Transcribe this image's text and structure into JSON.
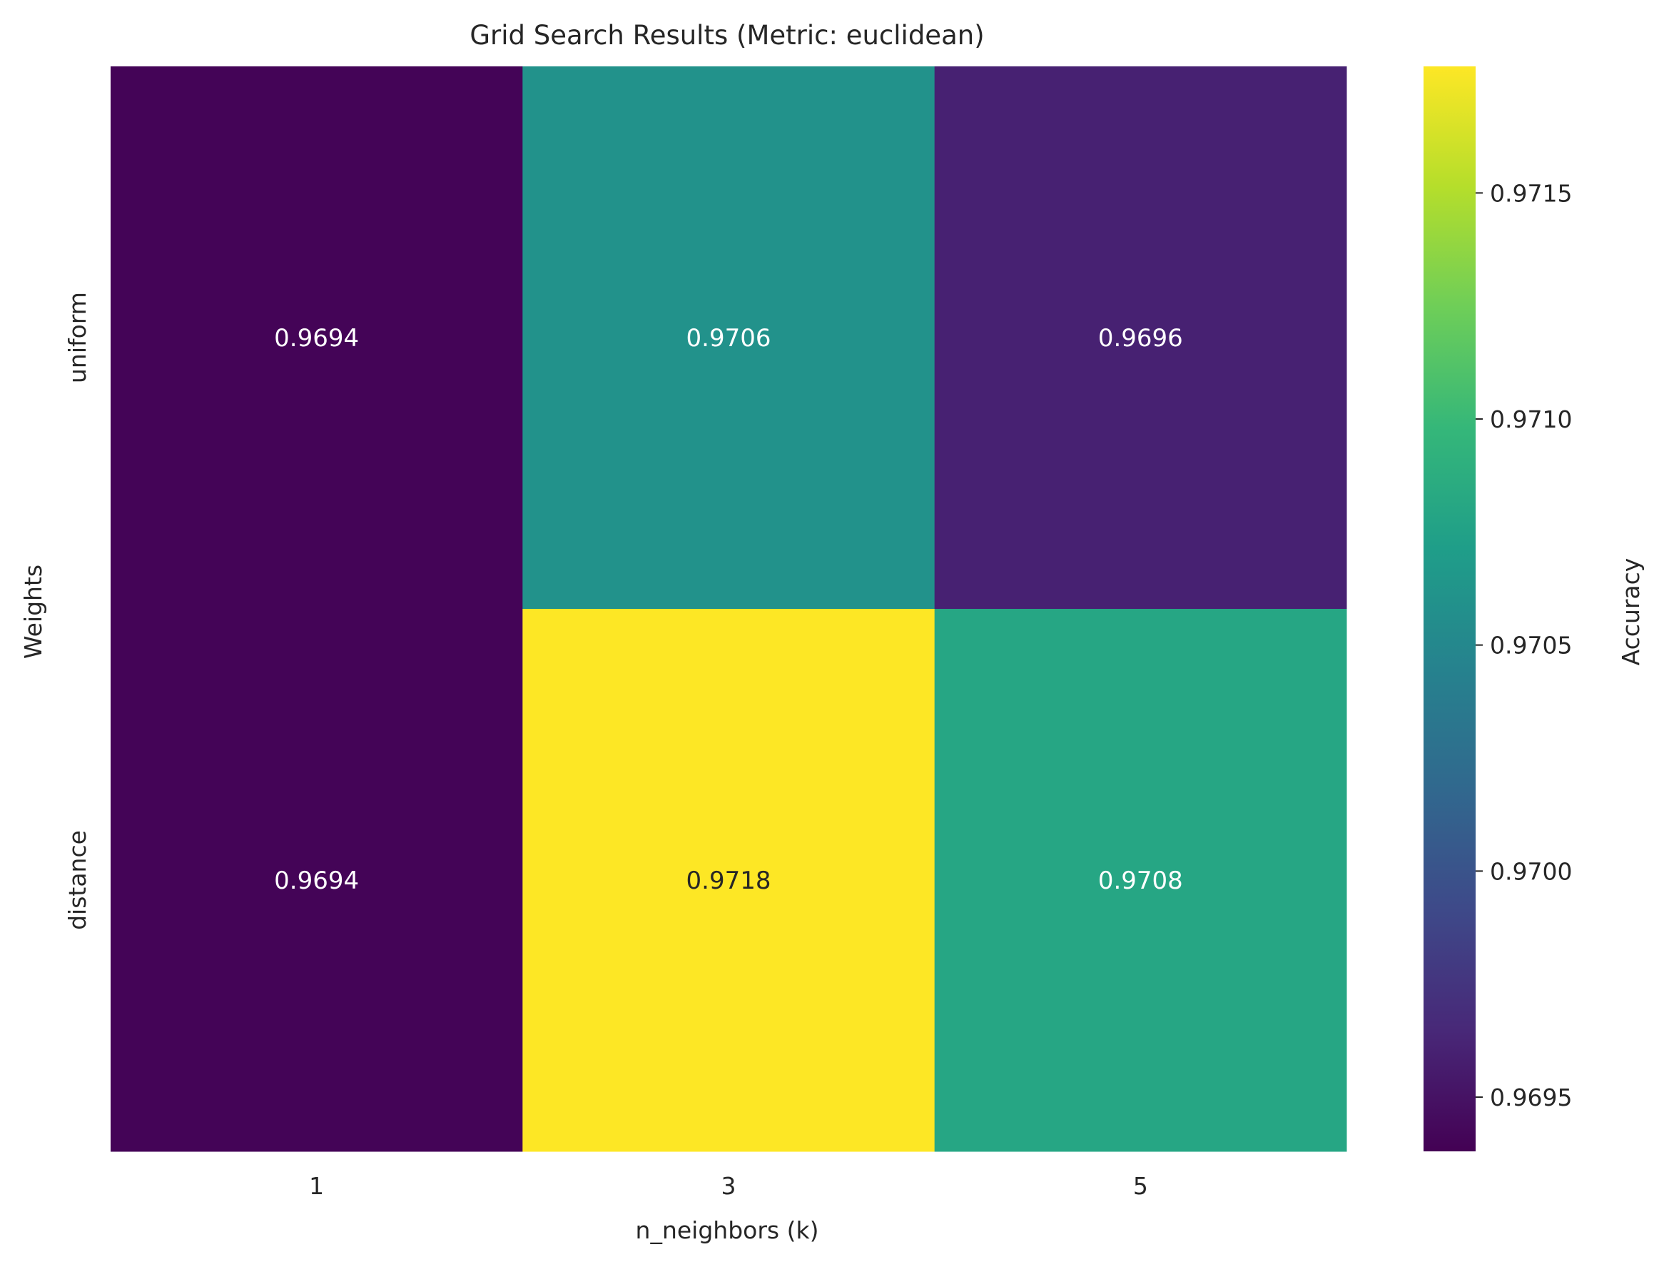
{
  "chart_data": {
    "type": "heatmap",
    "title": "Grid Search Results (Metric: euclidean)",
    "xlabel": "n_neighbors (k)",
    "ylabel": "Weights",
    "x_categories": [
      "1",
      "3",
      "5"
    ],
    "y_categories": [
      "uniform",
      "distance"
    ],
    "values": [
      [
        0.9694,
        0.9706,
        0.9696
      ],
      [
        0.9694,
        0.9718,
        0.9708
      ]
    ],
    "cell_labels": [
      [
        "0.9694",
        "0.9706",
        "0.9696"
      ],
      [
        "0.9694",
        "0.9718",
        "0.9708"
      ]
    ],
    "colormap": "viridis",
    "colorbar": {
      "label": "Accuracy",
      "range": [
        0.96938,
        0.97178
      ],
      "ticks": [
        0.9695,
        0.97,
        0.9705,
        0.971,
        0.9715
      ],
      "tick_labels": [
        "0.9695",
        "0.9700",
        "0.9705",
        "0.9710",
        "0.9715"
      ]
    },
    "grid": false,
    "legend": "none",
    "colors": {
      "text_dark": "#262626",
      "label_light": "#ffffff",
      "label_dark": "#262626"
    }
  }
}
